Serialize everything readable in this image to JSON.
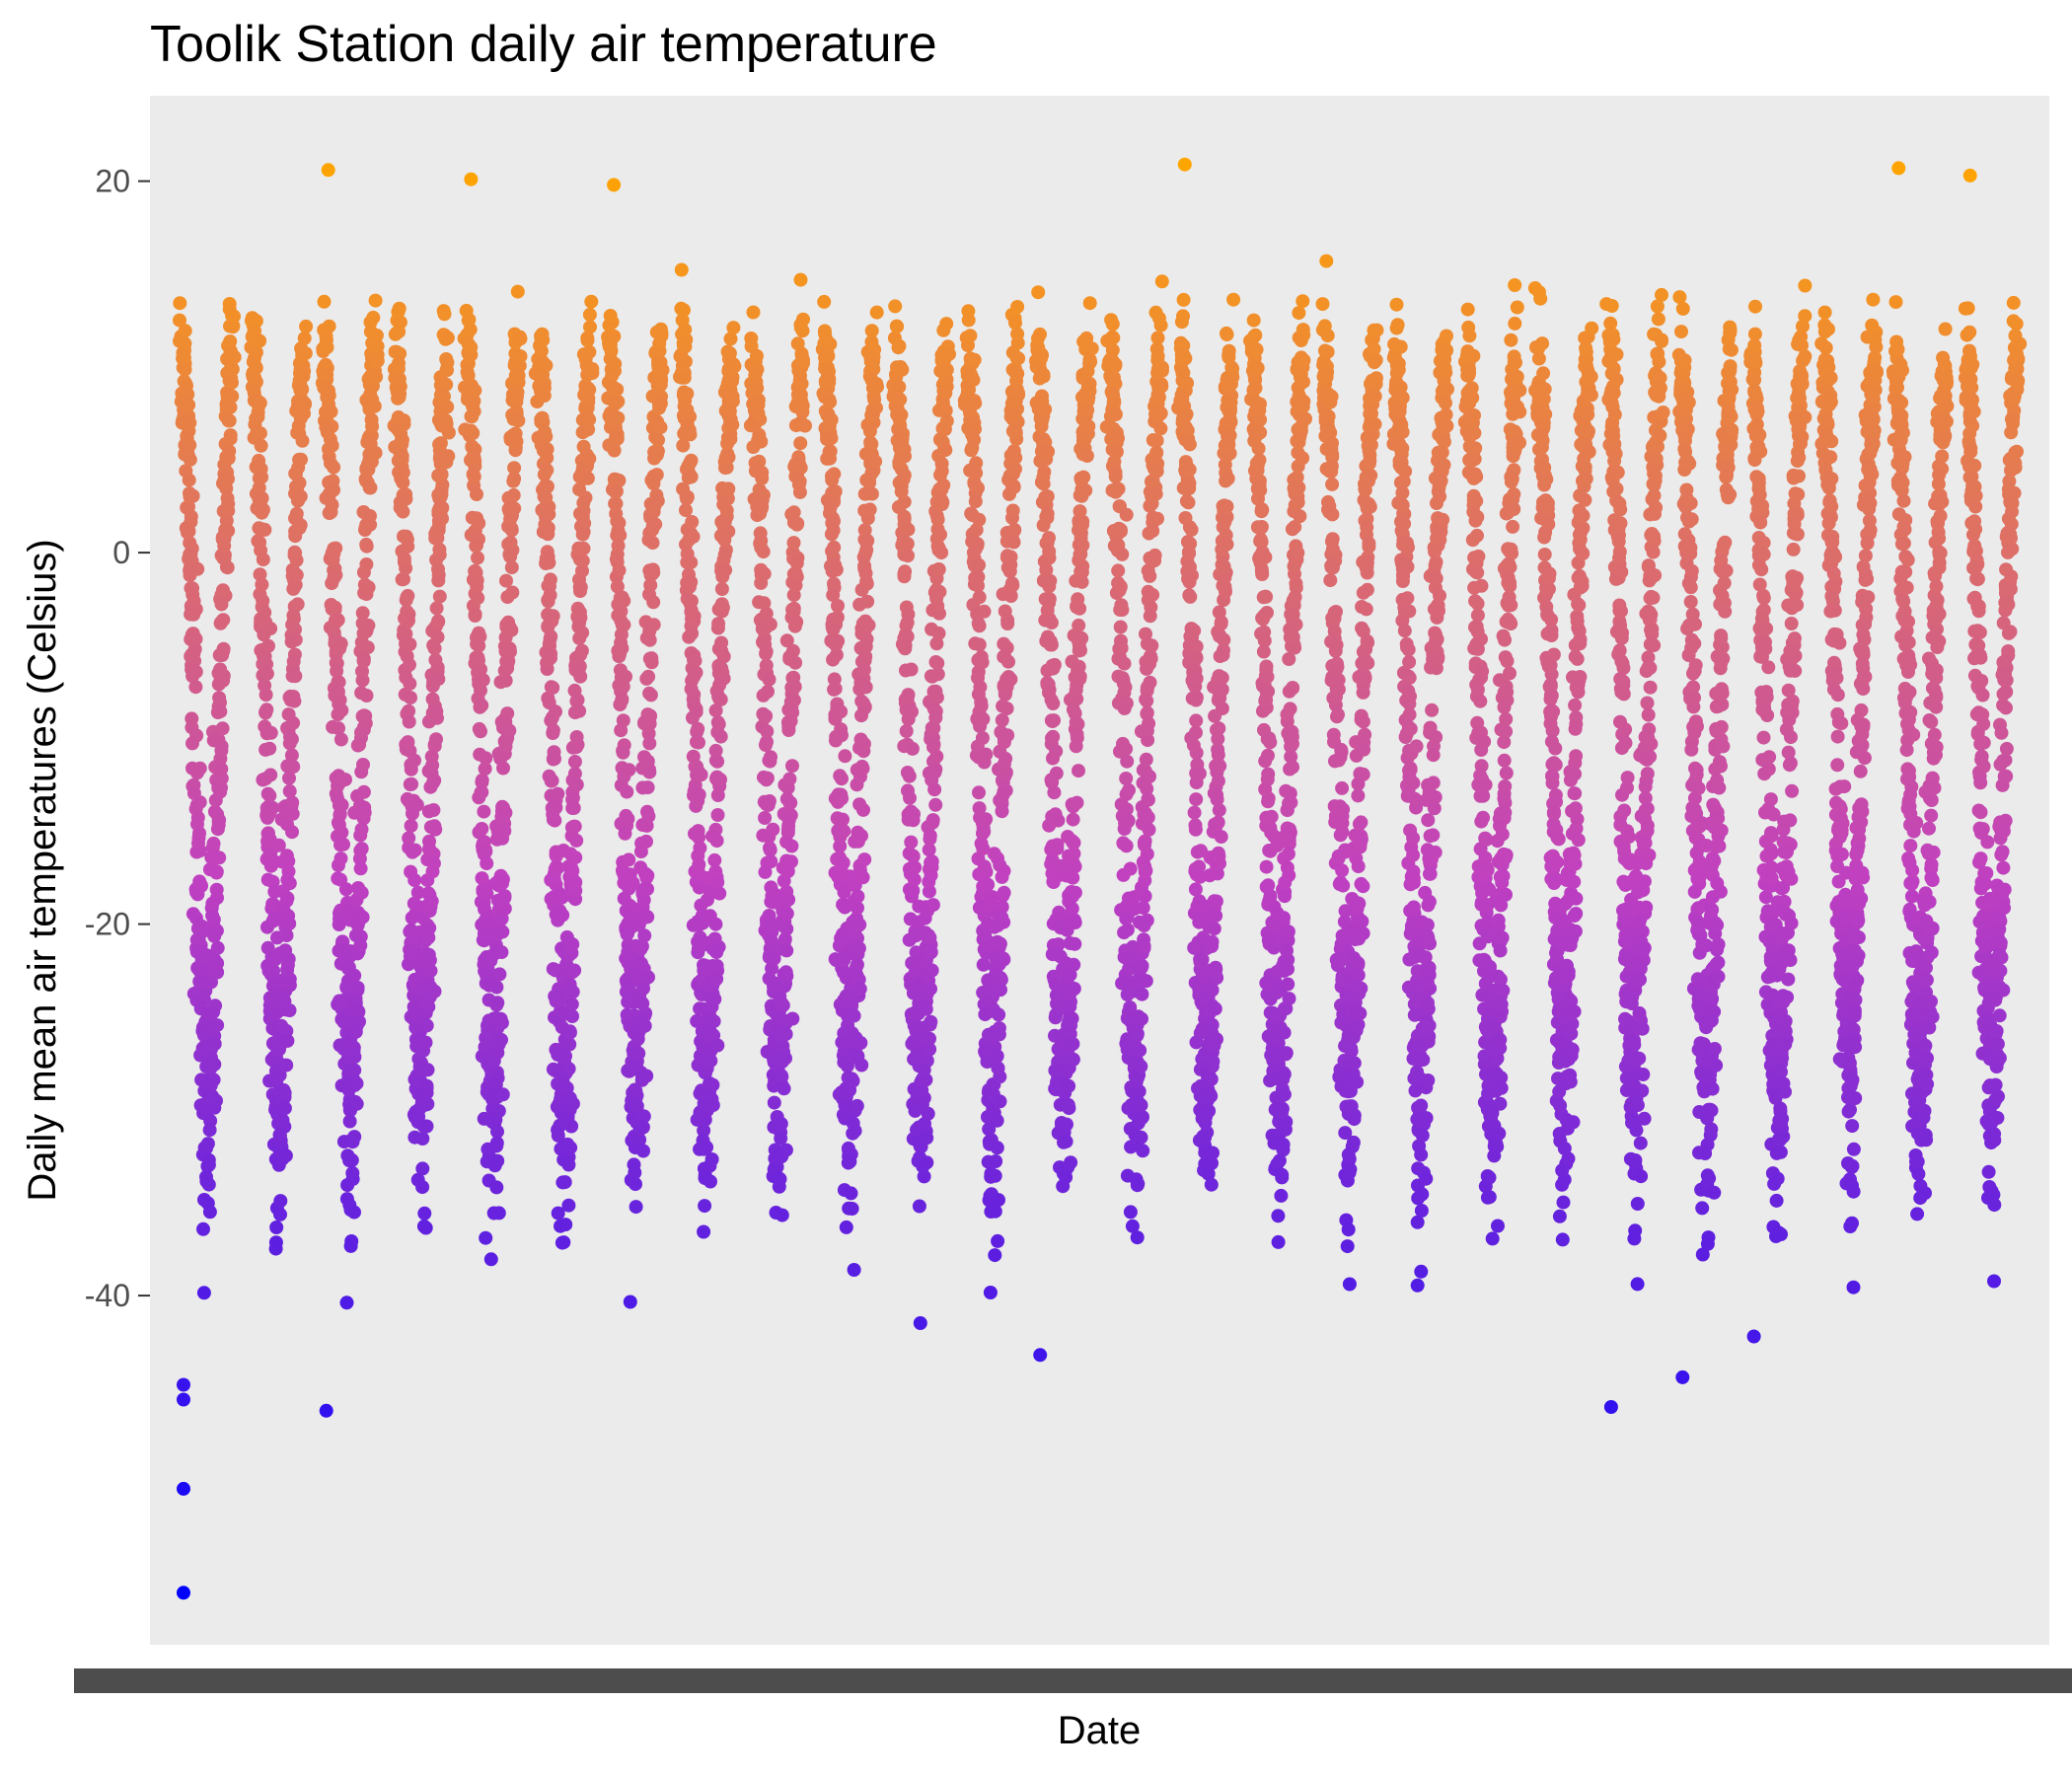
{
  "chart_data": {
    "type": "scatter",
    "title": "Toolik Station daily air temperature",
    "xlabel": "Date",
    "ylabel": "Daily mean air temperatures (Celsius)",
    "ylim": [
      -58.8,
      24.6
    ],
    "yticks": [
      20,
      0,
      -20,
      -40
    ],
    "ytick_labels": [
      "20",
      "0",
      "-20",
      "-40"
    ],
    "x_tick_labels_overplotted": true,
    "grid": false,
    "panel_background": "#ebebeb",
    "color_scale": {
      "low": "#0000ff",
      "mid": "#c040c0",
      "high": "#ffa500",
      "low_value": -56,
      "high_value": 21
    },
    "series": [
      {
        "years": 26,
        "points_per_year": 365,
        "seasonal_mean_high": 10,
        "seasonal_mean_low": -28,
        "extreme_lows": [
          -56,
          -50.4,
          -45.6,
          -44.8,
          -46.2,
          -43.2,
          -42.2,
          -46,
          -44.4
        ],
        "extreme_highs": [
          20.6,
          20.9,
          20.7,
          20.3,
          20.1,
          19.8
        ]
      }
    ]
  }
}
